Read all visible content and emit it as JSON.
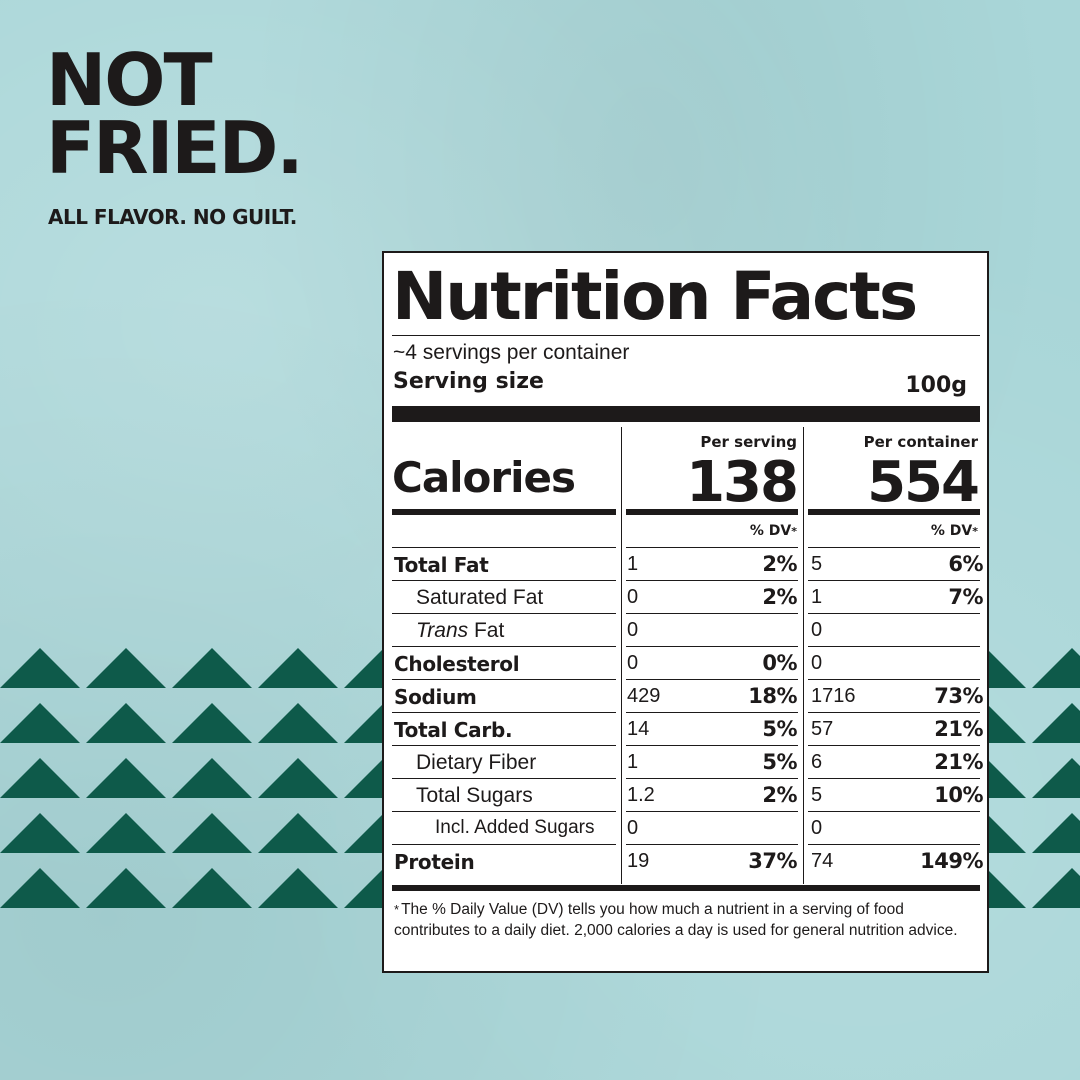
{
  "brand": {
    "headline_lines": [
      "NOT",
      "FRIED."
    ],
    "tagline": "ALL FLAVOR. NO GUILT."
  },
  "colors": {
    "background": "#a9d6d8",
    "pattern": "#0e5a4a",
    "ink": "#1d1a1a",
    "label_bg": "#ffffff"
  },
  "label": {
    "title": "Nutrition Facts",
    "servings_per_container": "~4 servings per container",
    "serving_size_label": "Serving size",
    "serving_size_value": "100g",
    "calories_label": "Calories",
    "per_serving_label": "Per serving",
    "per_container_label": "Per container",
    "calories_per_serving": "138",
    "calories_per_container": "554",
    "dv_label": "% DV",
    "dv_star": "*",
    "rows": [
      {
        "name": "Total Fat",
        "bold": true,
        "indent": 0,
        "serving": "1",
        "serving_dv": "2%",
        "container": "5",
        "container_dv": "6%"
      },
      {
        "name": "Saturated Fat",
        "bold": false,
        "indent": 1,
        "serving": "0",
        "serving_dv": "2%",
        "container": "1",
        "container_dv": "7%"
      },
      {
        "name_italic": "Trans",
        "name": " Fat",
        "bold": false,
        "indent": 1,
        "serving": "0",
        "serving_dv": "",
        "container": "0",
        "container_dv": ""
      },
      {
        "name": "Cholesterol",
        "bold": true,
        "indent": 0,
        "serving": "0",
        "serving_dv": "0%",
        "container": "0",
        "container_dv": ""
      },
      {
        "name": "Sodium",
        "bold": true,
        "indent": 0,
        "serving": "429",
        "serving_dv": "18%",
        "container": "1716",
        "container_dv": "73%"
      },
      {
        "name": "Total Carb.",
        "bold": true,
        "indent": 0,
        "serving": "14",
        "serving_dv": "5%",
        "container": "57",
        "container_dv": "21%"
      },
      {
        "name": "Dietary Fiber",
        "bold": false,
        "indent": 1,
        "serving": "1",
        "serving_dv": "5%",
        "container": "6",
        "container_dv": "21%"
      },
      {
        "name": "Total Sugars",
        "bold": false,
        "indent": 1,
        "serving": "1.2",
        "serving_dv": "2%",
        "container": "5",
        "container_dv": "10%"
      },
      {
        "name": "Incl. Added Sugars",
        "bold": false,
        "indent": 2,
        "serving": "0",
        "serving_dv": "",
        "container": "0",
        "container_dv": ""
      },
      {
        "name": "Protein",
        "bold": true,
        "indent": 0,
        "serving": "19",
        "serving_dv": "37%",
        "container": "74",
        "container_dv": "149%"
      }
    ],
    "footnote_star": "*",
    "footnote": "The % Daily Value (DV) tells you how much a nutrient in a serving of food contributes to a daily diet. 2,000 calories a day is used for general nutrition advice."
  }
}
